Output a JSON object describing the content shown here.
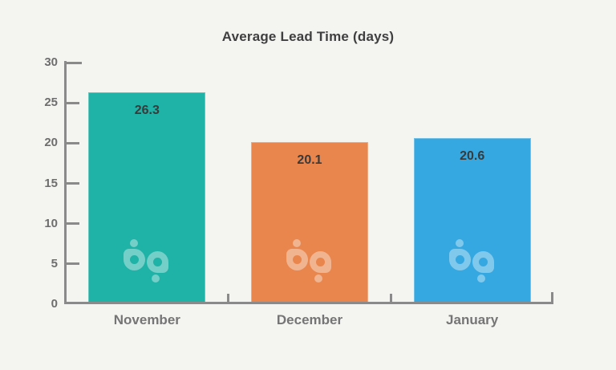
{
  "chart_data": {
    "type": "bar",
    "title": "Average Lead Time (days)",
    "categories": [
      "November",
      "December",
      "January"
    ],
    "values": [
      26.3,
      20.1,
      20.6
    ],
    "value_labels": [
      "26.3",
      "20.1",
      "20.6"
    ],
    "bar_colors": [
      "#1FB2A6",
      "#E8864D",
      "#35A8E1"
    ],
    "xlabel": "",
    "ylabel": "",
    "ylim": [
      0,
      30
    ],
    "yticks": [
      0,
      5,
      10,
      15,
      20,
      25,
      30
    ],
    "grid": false,
    "legend": "none",
    "watermark_icon": "bp-logo",
    "colors": {
      "background": "#F4F4F1",
      "axis": "#8A8A8A",
      "tick_label": "#6E6E6E",
      "category_label": "#757575",
      "value_label": "#3A3A3A",
      "title": "#3F3F3F",
      "watermark_tint": "rgba(255,255,255,0.38)"
    }
  }
}
